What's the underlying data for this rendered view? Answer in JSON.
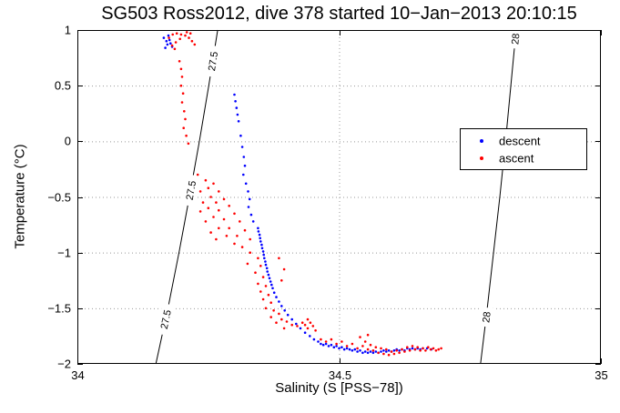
{
  "title": "SG503 Ross2012, dive 378 started 10−Jan−2013 20:10:15",
  "chart_data": {
    "type": "scatter",
    "title": "SG503 Ross2012, dive 378 started 10−Jan−2013 20:10:15",
    "xlabel": "Salinity (S [PSS−78])",
    "ylabel": "Temperature (°C)",
    "xlim": [
      34,
      35
    ],
    "ylim": [
      -2,
      1
    ],
    "xticks": [
      34,
      34.5,
      35
    ],
    "xtick_labels": [
      "34",
      "34.5",
      "35"
    ],
    "yticks": [
      -2,
      -1.5,
      -1,
      -0.5,
      0,
      0.5,
      1
    ],
    "ytick_labels": [
      "−2",
      "−1.5",
      "−1",
      "−0.5",
      "0",
      "0.5",
      "1"
    ],
    "grid": true,
    "legend_position": "upper-right-inside",
    "contours": [
      {
        "label": "27.5",
        "points": [
          [
            34.15,
            -2
          ],
          [
            34.173,
            -1.5
          ],
          [
            34.194,
            -1
          ],
          [
            34.214,
            -0.5
          ],
          [
            34.233,
            0
          ],
          [
            34.251,
            0.5
          ],
          [
            34.268,
            1
          ]
        ],
        "label_at_T": [
          0.72,
          -0.44,
          -1.6
        ]
      },
      {
        "label": "28",
        "points": [
          [
            34.77,
            -2
          ],
          [
            34.783,
            -1.5
          ],
          [
            34.795,
            -1
          ],
          [
            34.807,
            -0.5
          ],
          [
            34.818,
            0
          ],
          [
            34.828,
            0.5
          ],
          [
            34.838,
            1
          ]
        ],
        "label_at_T": [
          0.92,
          -1.58
        ]
      }
    ],
    "series": [
      {
        "name": "descent",
        "color": "#0000ff",
        "marker": "dot",
        "points": [
          [
            34.165,
            0.93
          ],
          [
            34.17,
            0.9
          ],
          [
            34.174,
            0.95
          ],
          [
            34.172,
            0.87
          ],
          [
            34.168,
            0.84
          ],
          [
            34.178,
            0.88
          ],
          [
            34.181,
            0.85
          ],
          [
            34.176,
            0.91
          ],
          [
            34.3,
            0.42
          ],
          [
            34.302,
            0.36
          ],
          [
            34.304,
            0.3
          ],
          [
            34.306,
            0.24
          ],
          [
            34.308,
            0.18
          ],
          [
            34.312,
            0.05
          ],
          [
            34.315,
            -0.05
          ],
          [
            34.318,
            -0.14
          ],
          [
            34.32,
            -0.22
          ],
          [
            34.317,
            -0.3
          ],
          [
            34.322,
            -0.38
          ],
          [
            34.326,
            -0.45
          ],
          [
            34.329,
            -0.52
          ],
          [
            34.327,
            -0.59
          ],
          [
            34.332,
            -0.66
          ],
          [
            34.336,
            -0.72
          ],
          [
            34.345,
            -0.78
          ],
          [
            34.346,
            -0.81
          ],
          [
            34.348,
            -0.84
          ],
          [
            34.349,
            -0.87
          ],
          [
            34.35,
            -0.9
          ],
          [
            34.352,
            -0.93
          ],
          [
            34.353,
            -0.96
          ],
          [
            34.355,
            -0.99
          ],
          [
            34.356,
            -1.02
          ],
          [
            34.357,
            -1.05
          ],
          [
            34.359,
            -1.08
          ],
          [
            34.36,
            -1.11
          ],
          [
            34.362,
            -1.14
          ],
          [
            34.363,
            -1.17
          ],
          [
            34.365,
            -1.2
          ],
          [
            34.367,
            -1.23
          ],
          [
            34.369,
            -1.26
          ],
          [
            34.371,
            -1.29
          ],
          [
            34.373,
            -1.32
          ],
          [
            34.376,
            -1.36
          ],
          [
            34.38,
            -1.4
          ],
          [
            34.385,
            -1.44
          ],
          [
            34.39,
            -1.48
          ],
          [
            34.396,
            -1.52
          ],
          [
            34.402,
            -1.56
          ],
          [
            34.41,
            -1.6
          ],
          [
            34.418,
            -1.64
          ],
          [
            34.426,
            -1.68
          ],
          [
            34.435,
            -1.72
          ],
          [
            34.444,
            -1.75
          ],
          [
            34.452,
            -1.78
          ],
          [
            34.46,
            -1.8
          ],
          [
            34.465,
            -1.82
          ],
          [
            34.47,
            -1.83
          ],
          [
            34.475,
            -1.82
          ],
          [
            34.48,
            -1.84
          ],
          [
            34.485,
            -1.83
          ],
          [
            34.49,
            -1.85
          ],
          [
            34.495,
            -1.84
          ],
          [
            34.5,
            -1.86
          ],
          [
            34.505,
            -1.85
          ],
          [
            34.51,
            -1.87
          ],
          [
            34.515,
            -1.86
          ],
          [
            34.52,
            -1.87
          ],
          [
            34.525,
            -1.88
          ],
          [
            34.53,
            -1.87
          ],
          [
            34.535,
            -1.89
          ],
          [
            34.54,
            -1.88
          ],
          [
            34.545,
            -1.9
          ],
          [
            34.55,
            -1.89
          ],
          [
            34.555,
            -1.9
          ],
          [
            34.56,
            -1.89
          ],
          [
            34.565,
            -1.9
          ],
          [
            34.57,
            -1.89
          ],
          [
            34.575,
            -1.9
          ],
          [
            34.58,
            -1.89
          ],
          [
            34.585,
            -1.88
          ],
          [
            34.59,
            -1.89
          ],
          [
            34.595,
            -1.88
          ],
          [
            34.6,
            -1.89
          ],
          [
            34.605,
            -1.88
          ],
          [
            34.61,
            -1.87
          ],
          [
            34.615,
            -1.88
          ],
          [
            34.62,
            -1.87
          ],
          [
            34.625,
            -1.88
          ],
          [
            34.63,
            -1.86
          ],
          [
            34.635,
            -1.87
          ],
          [
            34.64,
            -1.86
          ],
          [
            34.645,
            -1.87
          ],
          [
            34.65,
            -1.86
          ],
          [
            34.655,
            -1.87
          ],
          [
            34.66,
            -1.86
          ],
          [
            34.668,
            -1.86
          ],
          [
            34.676,
            -1.87
          ]
        ]
      },
      {
        "name": "ascent",
        "color": "#ff0000",
        "marker": "dot",
        "points": [
          [
            34.175,
            0.93
          ],
          [
            34.182,
            0.96
          ],
          [
            34.19,
            0.97
          ],
          [
            34.198,
            0.96
          ],
          [
            34.206,
            0.95
          ],
          [
            34.213,
            0.93
          ],
          [
            34.219,
            0.9
          ],
          [
            34.224,
            0.87
          ],
          [
            34.216,
            0.97
          ],
          [
            34.209,
            0.98
          ],
          [
            34.196,
            0.92
          ],
          [
            34.188,
            0.89
          ],
          [
            34.181,
            0.86
          ],
          [
            34.186,
            0.83
          ],
          [
            34.195,
            0.72
          ],
          [
            34.198,
            0.65
          ],
          [
            34.2,
            0.58
          ],
          [
            34.198,
            0.5
          ],
          [
            34.202,
            0.43
          ],
          [
            34.2,
            0.35
          ],
          [
            34.204,
            0.27
          ],
          [
            34.206,
            0.2
          ],
          [
            34.203,
            0.12
          ],
          [
            34.208,
            0.05
          ],
          [
            34.212,
            -0.02
          ],
          [
            34.23,
            -0.3
          ],
          [
            34.245,
            -0.35
          ],
          [
            34.26,
            -0.38
          ],
          [
            34.25,
            -0.42
          ],
          [
            34.235,
            -0.45
          ],
          [
            34.27,
            -0.45
          ],
          [
            34.255,
            -0.5
          ],
          [
            34.24,
            -0.55
          ],
          [
            34.265,
            -0.55
          ],
          [
            34.28,
            -0.52
          ],
          [
            34.25,
            -0.6
          ],
          [
            34.235,
            -0.63
          ],
          [
            34.27,
            -0.62
          ],
          [
            34.29,
            -0.58
          ],
          [
            34.26,
            -0.68
          ],
          [
            34.245,
            -0.72
          ],
          [
            34.28,
            -0.7
          ],
          [
            34.3,
            -0.65
          ],
          [
            34.27,
            -0.78
          ],
          [
            34.255,
            -0.82
          ],
          [
            34.29,
            -0.78
          ],
          [
            34.31,
            -0.72
          ],
          [
            34.285,
            -0.85
          ],
          [
            34.265,
            -0.88
          ],
          [
            34.305,
            -0.85
          ],
          [
            34.32,
            -0.8
          ],
          [
            34.3,
            -0.92
          ],
          [
            34.33,
            -0.88
          ],
          [
            34.315,
            -0.95
          ],
          [
            34.33,
            -1.0
          ],
          [
            34.345,
            -1.05
          ],
          [
            34.325,
            -1.1
          ],
          [
            34.35,
            -1.12
          ],
          [
            34.34,
            -1.18
          ],
          [
            34.355,
            -1.22
          ],
          [
            34.345,
            -1.28
          ],
          [
            34.36,
            -1.3
          ],
          [
            34.385,
            -1.05
          ],
          [
            34.395,
            -1.15
          ],
          [
            34.39,
            -1.25
          ],
          [
            34.35,
            -1.35
          ],
          [
            34.365,
            -1.38
          ],
          [
            34.355,
            -1.42
          ],
          [
            34.37,
            -1.45
          ],
          [
            34.36,
            -1.5
          ],
          [
            34.375,
            -1.52
          ],
          [
            34.385,
            -1.55
          ],
          [
            34.37,
            -1.58
          ],
          [
            34.39,
            -1.6
          ],
          [
            34.38,
            -1.63
          ],
          [
            34.4,
            -1.62
          ],
          [
            34.41,
            -1.65
          ],
          [
            34.395,
            -1.68
          ],
          [
            34.42,
            -1.66
          ],
          [
            34.43,
            -1.63
          ],
          [
            34.44,
            -1.6
          ],
          [
            34.435,
            -1.65
          ],
          [
            34.445,
            -1.63
          ],
          [
            34.45,
            -1.66
          ],
          [
            34.44,
            -1.68
          ],
          [
            34.455,
            -1.7
          ],
          [
            34.465,
            -1.78
          ],
          [
            34.475,
            -1.8
          ],
          [
            34.485,
            -1.78
          ],
          [
            34.495,
            -1.82
          ],
          [
            34.505,
            -1.8
          ],
          [
            34.515,
            -1.84
          ],
          [
            34.525,
            -1.82
          ],
          [
            34.535,
            -1.86
          ],
          [
            34.54,
            -1.76
          ],
          [
            34.545,
            -1.84
          ],
          [
            34.55,
            -1.8
          ],
          [
            34.555,
            -1.74
          ],
          [
            34.555,
            -1.87
          ],
          [
            34.56,
            -1.83
          ],
          [
            34.565,
            -1.88
          ],
          [
            34.57,
            -1.85
          ],
          [
            34.575,
            -1.9
          ],
          [
            34.58,
            -1.86
          ],
          [
            34.585,
            -1.91
          ],
          [
            34.59,
            -1.87
          ],
          [
            34.595,
            -1.92
          ],
          [
            34.6,
            -1.89
          ],
          [
            34.605,
            -1.91
          ],
          [
            34.61,
            -1.88
          ],
          [
            34.615,
            -1.9
          ],
          [
            34.62,
            -1.87
          ],
          [
            34.625,
            -1.89
          ],
          [
            34.63,
            -1.85
          ],
          [
            34.635,
            -1.88
          ],
          [
            34.64,
            -1.84
          ],
          [
            34.645,
            -1.87
          ],
          [
            34.65,
            -1.85
          ],
          [
            34.655,
            -1.88
          ],
          [
            34.66,
            -1.86
          ],
          [
            34.665,
            -1.88
          ],
          [
            34.67,
            -1.85
          ],
          [
            34.675,
            -1.87
          ],
          [
            34.68,
            -1.86
          ],
          [
            34.685,
            -1.88
          ],
          [
            34.69,
            -1.87
          ],
          [
            34.695,
            -1.86
          ]
        ]
      }
    ]
  }
}
